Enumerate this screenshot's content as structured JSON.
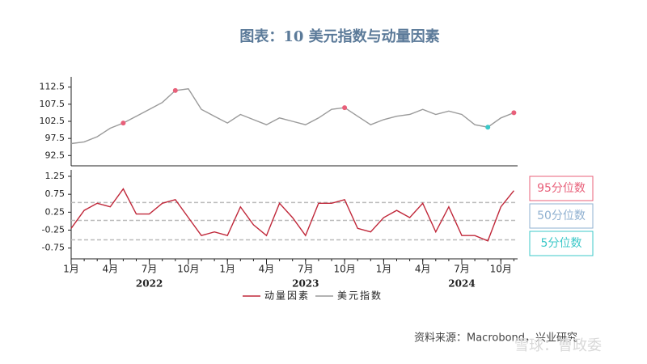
{
  "title": "图表：10 美元指数与动量因素",
  "source": "资料来源：Macrobond，兴业研究",
  "watermark": "雪球：曹政委",
  "chart_data": [
    {
      "type": "line",
      "series": [
        {
          "name": "美元指数",
          "color": "#9a9a9a",
          "values": [
            96,
            96.5,
            98,
            100.5,
            102,
            104,
            106,
            108,
            111.5,
            112,
            106,
            104,
            102,
            104.5,
            103,
            101.5,
            103.5,
            102.5,
            101.5,
            103.5,
            106,
            106.5,
            104,
            101.5,
            103,
            104,
            104.5,
            106,
            104.5,
            105.5,
            104.5,
            101.5,
            100.8,
            103.5,
            105
          ]
        }
      ],
      "ylim": [
        89.5,
        115.5
      ],
      "yticks": [
        92.5,
        97.5,
        102.5,
        107.5,
        112.5
      ]
    },
    {
      "type": "line",
      "x": [
        "2022-01",
        "2022-02",
        "2022-03",
        "2022-04",
        "2022-05",
        "2022-06",
        "2022-07",
        "2022-08",
        "2022-09",
        "2022-10",
        "2022-11",
        "2022-12",
        "2023-01",
        "2023-02",
        "2023-03",
        "2023-04",
        "2023-05",
        "2023-06",
        "2023-07",
        "2023-08",
        "2023-09",
        "2023-10",
        "2023-11",
        "2023-12",
        "2024-01",
        "2024-02",
        "2024-03",
        "2024-04",
        "2024-05",
        "2024-06",
        "2024-07",
        "2024-08",
        "2024-09",
        "2024-10",
        "2024-11"
      ],
      "series": [
        {
          "name": "动量因素",
          "color": "#c0283a",
          "values": [
            -0.2,
            0.3,
            0.5,
            0.4,
            0.9,
            0.2,
            0.2,
            0.5,
            0.6,
            0.1,
            -0.4,
            -0.3,
            -0.4,
            0.4,
            -0.1,
            -0.4,
            0.5,
            0.1,
            -0.4,
            0.5,
            0.5,
            0.6,
            -0.2,
            -0.3,
            0.1,
            0.3,
            0.1,
            0.5,
            -0.3,
            0.4,
            -0.4,
            -0.4,
            -0.55,
            0.4,
            0.85
          ]
        }
      ],
      "ylim": [
        -1.05,
        1.43
      ],
      "yticks": [
        -0.75,
        -0.25,
        0.25,
        0.75,
        1.25
      ],
      "reference_lines": [
        {
          "value": 0.52,
          "label": "95分位数",
          "color": "#e8607a"
        },
        {
          "value": 0.02,
          "label": "50分位数",
          "color": "#8fb0d0"
        },
        {
          "value": -0.52,
          "label": "5分位数",
          "color": "#3cc8c8"
        }
      ],
      "xticks": [
        {
          "value": "2022-01",
          "label": "1月"
        },
        {
          "value": "2022-04",
          "label": "4月"
        },
        {
          "value": "2022-07",
          "label": "7月"
        },
        {
          "value": "2022-10",
          "label": "10月"
        },
        {
          "value": "2023-01",
          "label": "1月"
        },
        {
          "value": "2023-04",
          "label": "4月"
        },
        {
          "value": "2023-07",
          "label": "7月"
        },
        {
          "value": "2023-10",
          "label": "10月"
        },
        {
          "value": "2024-01",
          "label": "1月"
        },
        {
          "value": "2024-04",
          "label": "4月"
        },
        {
          "value": "2024-07",
          "label": "7月"
        },
        {
          "value": "2024-10",
          "label": "10月"
        }
      ],
      "year_labels": [
        {
          "value": "2022-07",
          "label": "2022"
        },
        {
          "value": "2023-07",
          "label": "2023"
        },
        {
          "value": "2024-07",
          "label": "2024"
        }
      ]
    }
  ]
}
